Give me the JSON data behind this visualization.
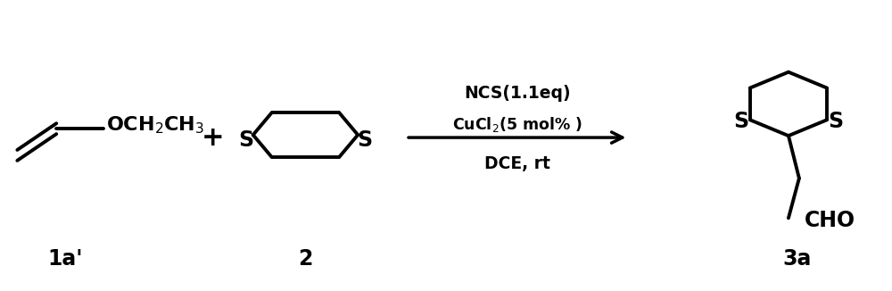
{
  "background_color": "#ffffff",
  "fig_width": 10.0,
  "fig_height": 3.26,
  "dpi": 100,
  "line_color": "#000000",
  "line_width": 2.8,
  "font_size_labels": 15,
  "font_size_compound": 17,
  "font_size_reagents": 12.5,
  "label_1a": "1a'",
  "label_2": "2",
  "label_3a": "3a",
  "reagent_line1": "NCS(1.1eq)",
  "reagent_line2": "CuCl$_2$(5 mol% )",
  "reagent_line3": "DCE, rt",
  "text_OCH2CH3": "OCH$_2$CH$_3$",
  "text_CHO": "CHO",
  "plus_sign": "+"
}
